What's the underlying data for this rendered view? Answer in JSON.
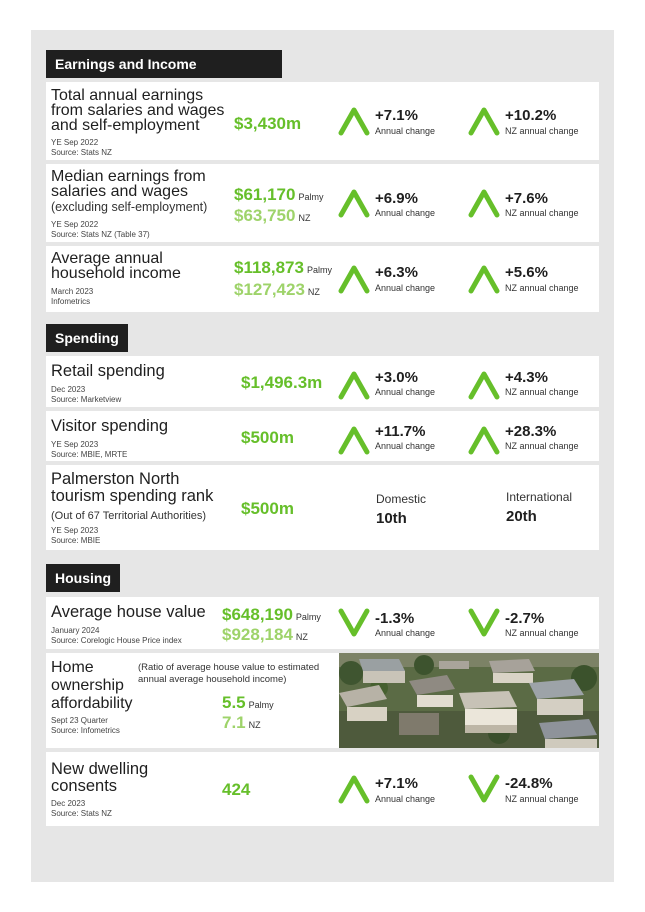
{
  "colors": {
    "green": "#66bf2a",
    "green_light": "#9ed36a",
    "header_bg": "#1f1f1f",
    "panel_bg": "#e6e6e6"
  },
  "sections": {
    "earnings": "Earnings and Income",
    "spending": "Spending",
    "housing": "Housing"
  },
  "earnings": {
    "total": {
      "title_lines": [
        "Total annual earnings",
        "from salaries and wages",
        "and self-employment"
      ],
      "period": "YE Sep 2022",
      "source": "Source: Stats NZ",
      "value": "$3,430m",
      "annual": {
        "direction": "up",
        "pct": "+7.1%",
        "label": "Annual change"
      },
      "nz": {
        "direction": "up",
        "pct": "+10.2%",
        "label": "NZ annual change"
      }
    },
    "median": {
      "title_lines": [
        "Median earnings from",
        "salaries and wages"
      ],
      "subtitle": "(excluding self-employment)",
      "period": "YE Sep 2022",
      "source": "Source: Stats NZ (Table 37)",
      "value_palmy": "$61,170",
      "label_palmy": "Palmy",
      "value_nz": "$63,750",
      "label_nz": "NZ",
      "annual": {
        "direction": "up",
        "pct": "+6.9%",
        "label": "Annual change"
      },
      "nz": {
        "direction": "up",
        "pct": "+7.6%",
        "label": "NZ annual change"
      }
    },
    "household": {
      "title_lines": [
        "Average annual",
        "household income"
      ],
      "period": "March 2023",
      "source": "Infometrics",
      "value_palmy": "$118,873",
      "label_palmy": "Palmy",
      "value_nz": "$127,423",
      "label_nz": "NZ",
      "annual": {
        "direction": "up",
        "pct": "+6.3%",
        "label": "Annual change"
      },
      "nz": {
        "direction": "up",
        "pct": "+5.6%",
        "label": "NZ annual change"
      }
    }
  },
  "spending": {
    "retail": {
      "title": "Retail spending",
      "period": "Dec 2023",
      "source": "Source: Marketview",
      "value": "$1,496.3m",
      "annual": {
        "direction": "up",
        "pct": "+3.0%",
        "label": "Annual change"
      },
      "nz": {
        "direction": "up",
        "pct": "+4.3%",
        "label": "NZ annual change"
      }
    },
    "visitor": {
      "title": "Visitor spending",
      "period": "YE Sep 2023",
      "source": "Source: MBIE, MRTE",
      "value": "$500m",
      "annual": {
        "direction": "up",
        "pct": "+11.7%",
        "label": "Annual change"
      },
      "nz": {
        "direction": "up",
        "pct": "+28.3%",
        "label": "NZ annual change"
      }
    },
    "tourism": {
      "title_lines": [
        "Palmerston North",
        "tourism spending rank"
      ],
      "subtitle": "(Out of 67 Territorial Authorities)",
      "period": "YE Sep 2023",
      "source": "Source: MBIE",
      "value": "$500m",
      "domestic_label": "Domestic",
      "domestic_value": "10th",
      "international_label": "International",
      "international_value": "20th"
    }
  },
  "housing": {
    "house_value": {
      "title": "Average house value",
      "period": "January 2024",
      "source": "Source: Corelogic House Price index",
      "value_palmy": "$648,190",
      "label_palmy": "Palmy",
      "value_nz": "$928,184",
      "label_nz": "NZ",
      "annual": {
        "direction": "down",
        "pct": "-1.3%",
        "label": "Annual change"
      },
      "nz": {
        "direction": "down",
        "pct": "-2.7%",
        "label": "NZ annual change"
      }
    },
    "affordability": {
      "title_lines": [
        "Home",
        "ownership",
        "affordability"
      ],
      "note_lines": [
        "(Ratio of average house value to estimated",
        "annual average household income)"
      ],
      "period": "Sept 23 Quarter",
      "source": "Source: Infometrics",
      "value_palmy": "5.5",
      "label_palmy": "Palmy",
      "value_nz": "7.1",
      "label_nz": "NZ"
    },
    "consents": {
      "title_lines": [
        "New dwelling",
        "consents"
      ],
      "period": "Dec 2023",
      "source": "Source: Stats NZ",
      "value": "424",
      "annual": {
        "direction": "up",
        "pct": "+7.1%",
        "label": "Annual change"
      },
      "nz": {
        "direction": "down",
        "pct": "-24.8%",
        "label": "NZ annual change"
      }
    }
  }
}
